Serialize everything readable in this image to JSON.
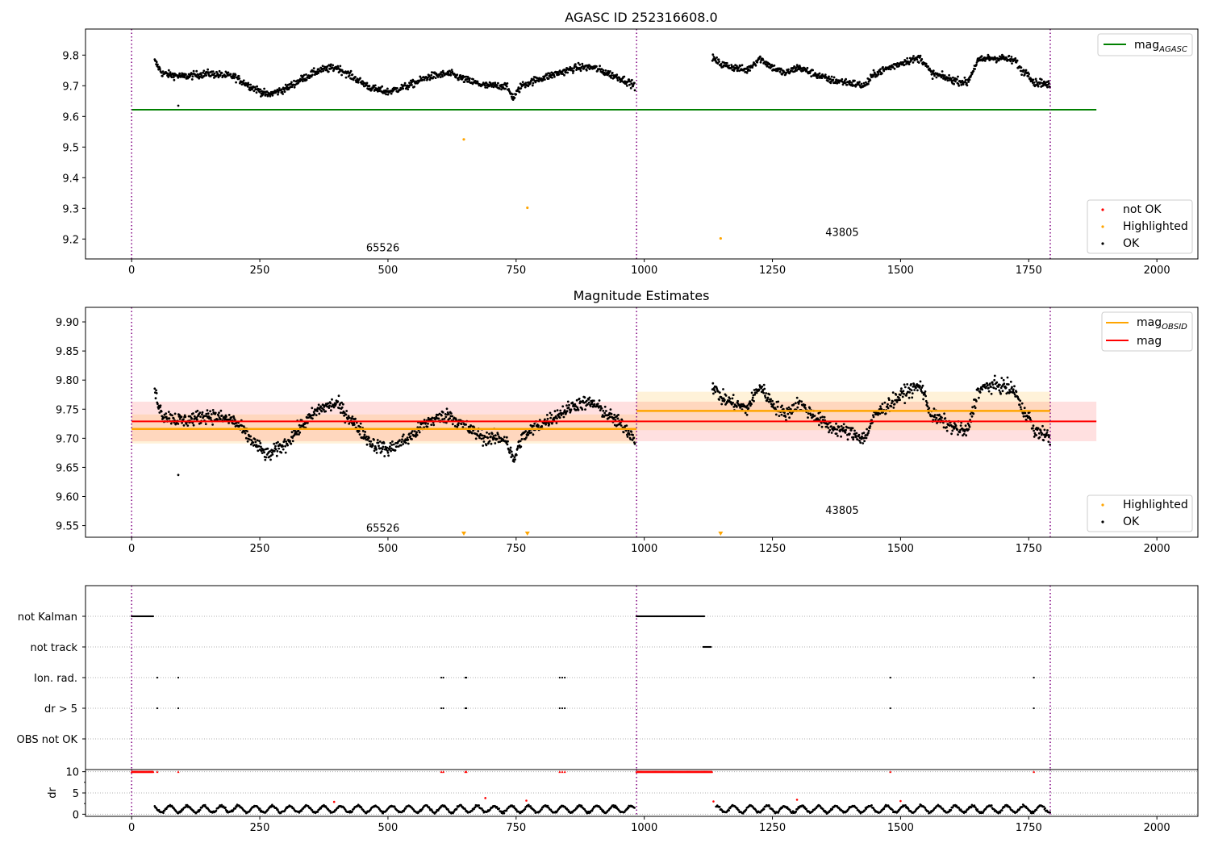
{
  "chart_data": [
    {
      "type": "scatter",
      "title": "AGASC ID 252316608.0",
      "xlabel": "",
      "ylabel": "",
      "xlim": [
        -90,
        2080
      ],
      "ylim": [
        9.135,
        9.885
      ],
      "xticks": [
        0,
        250,
        500,
        750,
        1000,
        1250,
        1500,
        1750,
        2000
      ],
      "xtick_labels": [
        "0",
        "250",
        "500",
        "750",
        "1000",
        "1250",
        "1500",
        "1750",
        "2000"
      ],
      "yticks": [
        9.2,
        9.3,
        9.4,
        9.5,
        9.6,
        9.7,
        9.8
      ],
      "ytick_labels": [
        "9.2",
        "9.3",
        "9.4",
        "9.5",
        "9.6",
        "9.7",
        "9.8"
      ],
      "obs_boundaries": [
        0,
        985,
        1792
      ],
      "obs_labels": [
        {
          "text": "65526",
          "x": 490,
          "y": 9.16
        },
        {
          "text": "43805",
          "x": 1386,
          "y": 9.21
        }
      ],
      "mag_agasc": {
        "value": 9.622,
        "x_range": [
          0,
          1882
        ],
        "color": "#008000"
      },
      "highlighted_points": [
        [
          648,
          9.525
        ],
        [
          772,
          9.302
        ],
        [
          1149,
          9.202
        ]
      ],
      "ok_series": {
        "segments": [
          [
            45,
            982
          ],
          [
            1133,
            1792
          ]
        ],
        "anchors_x": [
          45,
          60,
          100,
          150,
          200,
          230,
          265,
          300,
          330,
          365,
          400,
          430,
          470,
          500,
          540,
          580,
          620,
          650,
          690,
          730,
          745,
          760,
          790,
          830,
          870,
          900,
          930,
          960,
          982,
          1133,
          1150,
          1175,
          1200,
          1225,
          1250,
          1275,
          1300,
          1330,
          1360,
          1400,
          1430,
          1450,
          1480,
          1510,
          1540,
          1560,
          1600,
          1630,
          1650,
          1670,
          1700,
          1725,
          1735,
          1750,
          1760,
          1775,
          1792
        ],
        "anchors_y": [
          9.78,
          9.74,
          9.73,
          9.74,
          9.73,
          9.7,
          9.67,
          9.69,
          9.72,
          9.75,
          9.76,
          9.73,
          9.69,
          9.68,
          9.7,
          9.73,
          9.74,
          9.72,
          9.7,
          9.7,
          9.66,
          9.7,
          9.72,
          9.74,
          9.76,
          9.76,
          9.74,
          9.72,
          9.7,
          9.79,
          9.77,
          9.76,
          9.75,
          9.79,
          9.76,
          9.74,
          9.76,
          9.74,
          9.72,
          9.71,
          9.7,
          9.74,
          9.76,
          9.78,
          9.79,
          9.74,
          9.72,
          9.71,
          9.78,
          9.79,
          9.79,
          9.78,
          9.75,
          9.74,
          9.71,
          9.71,
          9.7
        ],
        "outliers": [
          [
            91,
            9.635
          ]
        ]
      },
      "legend_lines": [
        "mag_AGASC"
      ],
      "legend_markers": [
        "not OK",
        "Highlighted",
        "OK"
      ]
    },
    {
      "type": "scatter",
      "title": "Magnitude Estimates",
      "xlabel": "",
      "ylabel": "",
      "xlim": [
        -90,
        2080
      ],
      "ylim": [
        9.53,
        9.925
      ],
      "xticks": [
        0,
        250,
        500,
        750,
        1000,
        1250,
        1500,
        1750,
        2000
      ],
      "xtick_labels": [
        "0",
        "250",
        "500",
        "750",
        "1000",
        "1250",
        "1500",
        "1750",
        "2000"
      ],
      "yticks": [
        9.55,
        9.6,
        9.65,
        9.7,
        9.75,
        9.8,
        9.85,
        9.9
      ],
      "ytick_labels": [
        "9.55",
        "9.60",
        "9.65",
        "9.70",
        "9.75",
        "9.80",
        "9.85",
        "9.90"
      ],
      "obs_boundaries": [
        0,
        985,
        1792
      ],
      "obs_labels": [
        {
          "text": "65526",
          "x": 490,
          "y": 9.54
        },
        {
          "text": "43805",
          "x": 1386,
          "y": 9.57
        }
      ],
      "mag": {
        "value": 9.729,
        "band": [
          9.695,
          9.763
        ],
        "x_range": [
          0,
          1882
        ],
        "color": "#ff0000"
      },
      "mag_obsid": [
        {
          "value": 9.716,
          "band": [
            9.691,
            9.741
          ],
          "x_range": [
            0,
            985
          ]
        },
        {
          "value": 9.747,
          "band": [
            9.714,
            9.78
          ],
          "x_range": [
            985,
            1792
          ]
        }
      ],
      "mag_obsid_color": "#ffa500",
      "highlighted_markers": [
        648,
        772,
        1149
      ],
      "ok_series": {
        "segments": [
          [
            45,
            982
          ],
          [
            1133,
            1792
          ]
        ],
        "anchors_x": [
          45,
          60,
          100,
          150,
          200,
          230,
          265,
          300,
          330,
          365,
          400,
          430,
          470,
          500,
          540,
          580,
          620,
          650,
          690,
          730,
          745,
          760,
          790,
          830,
          870,
          900,
          930,
          960,
          982,
          1133,
          1150,
          1175,
          1200,
          1225,
          1250,
          1275,
          1300,
          1330,
          1360,
          1400,
          1430,
          1450,
          1480,
          1510,
          1540,
          1560,
          1600,
          1630,
          1650,
          1670,
          1700,
          1725,
          1735,
          1750,
          1760,
          1775,
          1792
        ],
        "anchors_y": [
          9.78,
          9.74,
          9.73,
          9.74,
          9.73,
          9.7,
          9.67,
          9.69,
          9.72,
          9.75,
          9.76,
          9.73,
          9.69,
          9.68,
          9.7,
          9.73,
          9.74,
          9.72,
          9.7,
          9.7,
          9.66,
          9.7,
          9.72,
          9.74,
          9.76,
          9.76,
          9.74,
          9.72,
          9.7,
          9.79,
          9.77,
          9.76,
          9.75,
          9.79,
          9.76,
          9.74,
          9.76,
          9.74,
          9.72,
          9.71,
          9.7,
          9.74,
          9.76,
          9.78,
          9.79,
          9.74,
          9.72,
          9.71,
          9.78,
          9.79,
          9.79,
          9.78,
          9.75,
          9.74,
          9.71,
          9.71,
          9.7
        ],
        "outliers": [
          [
            91,
            9.637
          ]
        ]
      },
      "legend_lines": [
        "mag_OBSID",
        "mag"
      ],
      "legend_markers": [
        "Highlighted",
        "OK"
      ]
    },
    {
      "type": "scatter",
      "title": "",
      "xlabel": "",
      "ylabel": "",
      "xlim": [
        -90,
        2080
      ],
      "categories": [
        "not Kalman",
        "not track",
        "Ion. rad.",
        "dr > 5",
        "OBS not OK"
      ],
      "flags": {
        "not Kalman": {
          "ranges": [
            [
              0,
              43
            ],
            [
              985,
              1118
            ]
          ],
          "points": []
        },
        "not track": {
          "ranges": [
            [
              1115,
              1130
            ]
          ],
          "points": []
        },
        "Ion. rad.": {
          "ranges": [],
          "points": [
            50,
            91,
            604,
            608,
            651,
            653,
            835,
            840,
            845,
            1480,
            1760
          ]
        },
        "dr > 5": {
          "ranges": [],
          "points": [
            50,
            91,
            604,
            608,
            651,
            653,
            835,
            840,
            845,
            1480,
            1760
          ]
        },
        "OBS not OK": {
          "ranges": [],
          "points": []
        }
      },
      "obs_boundaries": [
        0,
        985,
        1792
      ]
    },
    {
      "type": "scatter",
      "title": "",
      "xlabel": "",
      "ylabel": "dr",
      "xlim": [
        -90,
        2080
      ],
      "ylim": [
        -0.5,
        10.5
      ],
      "xticks": [
        0,
        250,
        500,
        750,
        1000,
        1250,
        1500,
        1750,
        2000
      ],
      "xtick_labels": [
        "0",
        "250",
        "500",
        "750",
        "1000",
        "1250",
        "1500",
        "1750",
        "2000"
      ],
      "yticks": [
        0,
        5,
        10
      ],
      "ytick_labels": [
        "0",
        "5",
        "10"
      ],
      "obs_boundaries": [
        0,
        985,
        1792
      ],
      "not_ok_capped": {
        "value": 10,
        "ranges": [
          [
            0,
            43
          ],
          [
            985,
            1133
          ]
        ],
        "points": [
          50,
          91,
          604,
          608,
          651,
          653,
          835,
          840,
          845,
          1480,
          1760
        ]
      },
      "not_ok_scattered": [
        [
          395,
          2.9
        ],
        [
          690,
          3.8
        ],
        [
          770,
          3.2
        ],
        [
          1135,
          3.0
        ],
        [
          1298,
          3.4
        ],
        [
          1500,
          3.1
        ]
      ],
      "ok_series": {
        "segments": [
          [
            45,
            982
          ],
          [
            1140,
            1792
          ]
        ],
        "baseline": 1.2,
        "amplitude": 0.8
      }
    }
  ]
}
